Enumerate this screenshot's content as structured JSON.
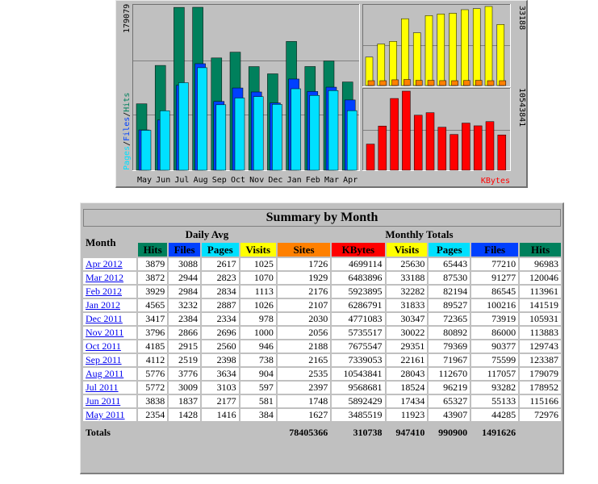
{
  "chart_data": [
    {
      "type": "bar",
      "title": "",
      "categories": [
        "May",
        "Jun",
        "Jul",
        "Aug",
        "Sep",
        "Oct",
        "Nov",
        "Dec",
        "Jan",
        "Feb",
        "Mar",
        "Apr"
      ],
      "ymax_label": "179079",
      "ylabel_parts": [
        {
          "text": "Pages",
          "color": "#00e0ff"
        },
        {
          "text": "/",
          "color": "#000000"
        },
        {
          "text": "Files",
          "color": "#0040ff"
        },
        {
          "text": "/",
          "color": "#000000"
        },
        {
          "text": "Hits",
          "color": "#00805c"
        }
      ],
      "ylim": [
        0,
        179079
      ],
      "series": [
        {
          "name": "Hits",
          "color": "#00805c",
          "values": [
            72976,
            115166,
            178952,
            179079,
            123387,
            129743,
            113883,
            105931,
            141519,
            113961,
            120046,
            96983
          ]
        },
        {
          "name": "Files",
          "color": "#0040ff",
          "values": [
            44285,
            55133,
            93282,
            117057,
            75599,
            90377,
            86000,
            73919,
            100216,
            86545,
            91277,
            77210
          ]
        },
        {
          "name": "Pages",
          "color": "#00e0ff",
          "values": [
            43907,
            65327,
            96219,
            112670,
            71967,
            79369,
            80892,
            72365,
            89527,
            82194,
            87530,
            65443
          ]
        }
      ]
    },
    {
      "type": "bar",
      "ymax_label": "33188",
      "ylim": [
        0,
        33188
      ],
      "series": [
        {
          "name": "Visits",
          "color": "#ffff00",
          "values": [
            11923,
            17434,
            18524,
            28043,
            22161,
            29351,
            30022,
            30347,
            31833,
            32282,
            33188,
            25630
          ]
        },
        {
          "name": "Sites",
          "color": "#ff8000",
          "values": [
            1627,
            1748,
            2397,
            2535,
            2165,
            2188,
            2056,
            2030,
            2107,
            2176,
            1929,
            1726
          ]
        }
      ]
    },
    {
      "type": "bar",
      "ymax_label": "10543841",
      "xlabel": "KBytes",
      "ylim": [
        0,
        10543841
      ],
      "series": [
        {
          "name": "KBytes",
          "color": "#ff0000",
          "values": [
            3485519,
            5892429,
            9568681,
            10543841,
            7339053,
            7675547,
            5735517,
            4771083,
            6286791,
            5923895,
            6483896,
            4699114
          ]
        }
      ]
    }
  ],
  "summary": {
    "title": "Summary by Month",
    "month_header": "Month",
    "daily_avg_header": "Daily Avg",
    "monthly_totals_header": "Monthly Totals",
    "cols": {
      "hits": "Hits",
      "files": "Files",
      "pages": "Pages",
      "visits": "Visits",
      "sites": "Sites",
      "kbytes": "KBytes"
    },
    "rows": [
      {
        "month": "Apr 2012",
        "d_hits": "3879",
        "d_files": "3088",
        "d_pages": "2617",
        "d_visits": "1025",
        "sites": "1726",
        "kbytes": "4699114",
        "visits": "25630",
        "pages": "65443",
        "files": "77210",
        "hits": "96983"
      },
      {
        "month": "Mar 2012",
        "d_hits": "3872",
        "d_files": "2944",
        "d_pages": "2823",
        "d_visits": "1070",
        "sites": "1929",
        "kbytes": "6483896",
        "visits": "33188",
        "pages": "87530",
        "files": "91277",
        "hits": "120046"
      },
      {
        "month": "Feb 2012",
        "d_hits": "3929",
        "d_files": "2984",
        "d_pages": "2834",
        "d_visits": "1113",
        "sites": "2176",
        "kbytes": "5923895",
        "visits": "32282",
        "pages": "82194",
        "files": "86545",
        "hits": "113961"
      },
      {
        "month": "Jan 2012",
        "d_hits": "4565",
        "d_files": "3232",
        "d_pages": "2887",
        "d_visits": "1026",
        "sites": "2107",
        "kbytes": "6286791",
        "visits": "31833",
        "pages": "89527",
        "files": "100216",
        "hits": "141519"
      },
      {
        "month": "Dec 2011",
        "d_hits": "3417",
        "d_files": "2384",
        "d_pages": "2334",
        "d_visits": "978",
        "sites": "2030",
        "kbytes": "4771083",
        "visits": "30347",
        "pages": "72365",
        "files": "73919",
        "hits": "105931"
      },
      {
        "month": "Nov 2011",
        "d_hits": "3796",
        "d_files": "2866",
        "d_pages": "2696",
        "d_visits": "1000",
        "sites": "2056",
        "kbytes": "5735517",
        "visits": "30022",
        "pages": "80892",
        "files": "86000",
        "hits": "113883"
      },
      {
        "month": "Oct 2011",
        "d_hits": "4185",
        "d_files": "2915",
        "d_pages": "2560",
        "d_visits": "946",
        "sites": "2188",
        "kbytes": "7675547",
        "visits": "29351",
        "pages": "79369",
        "files": "90377",
        "hits": "129743"
      },
      {
        "month": "Sep 2011",
        "d_hits": "4112",
        "d_files": "2519",
        "d_pages": "2398",
        "d_visits": "738",
        "sites": "2165",
        "kbytes": "7339053",
        "visits": "22161",
        "pages": "71967",
        "files": "75599",
        "hits": "123387"
      },
      {
        "month": "Aug 2011",
        "d_hits": "5776",
        "d_files": "3776",
        "d_pages": "3634",
        "d_visits": "904",
        "sites": "2535",
        "kbytes": "10543841",
        "visits": "28043",
        "pages": "112670",
        "files": "117057",
        "hits": "179079"
      },
      {
        "month": "Jul 2011",
        "d_hits": "5772",
        "d_files": "3009",
        "d_pages": "3103",
        "d_visits": "597",
        "sites": "2397",
        "kbytes": "9568681",
        "visits": "18524",
        "pages": "96219",
        "files": "93282",
        "hits": "178952"
      },
      {
        "month": "Jun 2011",
        "d_hits": "3838",
        "d_files": "1837",
        "d_pages": "2177",
        "d_visits": "581",
        "sites": "1748",
        "kbytes": "5892429",
        "visits": "17434",
        "pages": "65327",
        "files": "55133",
        "hits": "115166"
      },
      {
        "month": "May 2011",
        "d_hits": "2354",
        "d_files": "1428",
        "d_pages": "1416",
        "d_visits": "384",
        "sites": "1627",
        "kbytes": "3485519",
        "visits": "11923",
        "pages": "43907",
        "files": "44285",
        "hits": "72976"
      }
    ],
    "totals": {
      "label": "Totals",
      "kbytes": "78405366",
      "visits": "310738",
      "pages": "947410",
      "files": "990900",
      "hits": "1491626"
    }
  }
}
